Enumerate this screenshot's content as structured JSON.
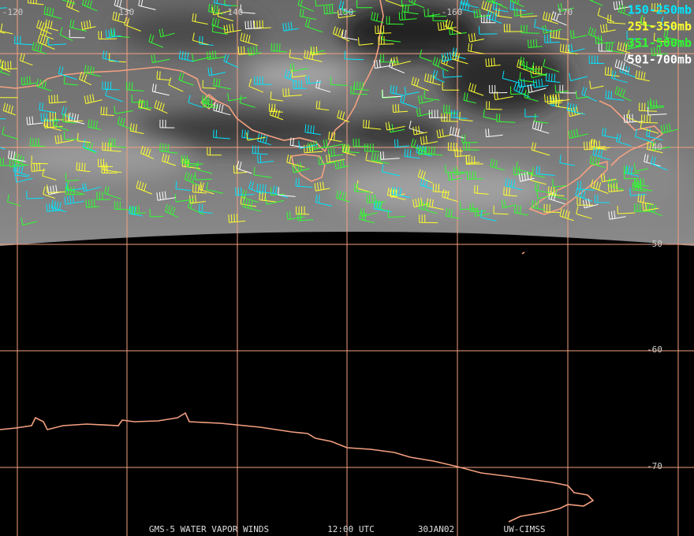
{
  "longitude_labels": [
    "-120",
    "-130",
    "-140",
    "-150",
    "-160",
    "-170"
  ],
  "latitude_labels": [
    "-40",
    "-50",
    "-60",
    "-70"
  ],
  "legend": [
    {
      "label": "150-250mb",
      "color": "#00e5ff"
    },
    {
      "label": "251-350mb",
      "color": "#ffff30"
    },
    {
      "label": "351-500mb",
      "color": "#30ff30"
    },
    {
      "label": "501-700mb",
      "color": "#ffffff"
    }
  ],
  "footer": [
    "GMS-5 WATER VAPOR WINDS",
    "12:00 UTC",
    "30JAN02",
    "UW-CIMSS"
  ]
}
